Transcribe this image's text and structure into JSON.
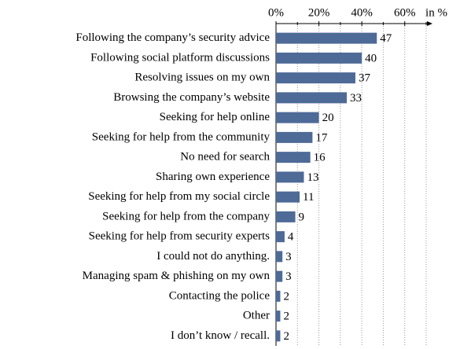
{
  "chart_data": {
    "type": "bar",
    "orientation": "horizontal",
    "x_label": "in %",
    "categories": [
      "Following the company’s security advice",
      "Following social platform discussions",
      "Resolving issues on my own",
      "Browsing the company’s website",
      "Seeking for help online",
      "Seeking for help from the community",
      "No need for search",
      "Sharing own experience",
      "Seeking for help from my social circle",
      "Seeking for help from the company",
      "Seeking for help from security experts",
      "I could not do anything.",
      "Managing spam & phishing on my own",
      "Contacting the police",
      "Other",
      "I don’t know / recall."
    ],
    "values": [
      47,
      40,
      37,
      33,
      20,
      17,
      16,
      13,
      11,
      9,
      4,
      3,
      3,
      2,
      2,
      2
    ],
    "color": "#4e6a97",
    "xlim": [
      0,
      70
    ],
    "xticks": [
      {
        "value": 0,
        "label": "0%"
      },
      {
        "value": 20,
        "label": "20%"
      },
      {
        "value": 40,
        "label": "40%"
      },
      {
        "value": 60,
        "label": "60%"
      }
    ],
    "xminor": [
      10,
      30,
      50,
      70
    ],
    "grid": true
  }
}
